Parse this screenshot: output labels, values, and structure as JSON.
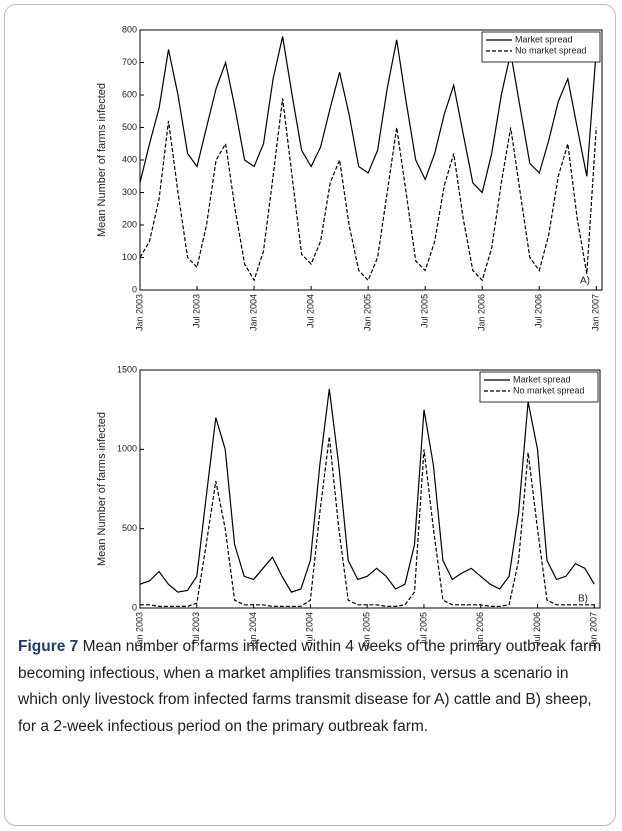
{
  "chart_data": [
    {
      "type": "line",
      "panel_label": "A)",
      "ylabel": "Mean Number of farms infected",
      "x": [
        2003,
        2003.083,
        2003.167,
        2003.25,
        2003.333,
        2003.417,
        2003.5,
        2003.583,
        2003.667,
        2003.75,
        2003.833,
        2003.917,
        2004,
        2004.083,
        2004.167,
        2004.25,
        2004.333,
        2004.417,
        2004.5,
        2004.583,
        2004.667,
        2004.75,
        2004.833,
        2004.917,
        2005,
        2005.083,
        2005.167,
        2005.25,
        2005.333,
        2005.417,
        2005.5,
        2005.583,
        2005.667,
        2005.75,
        2005.833,
        2005.917,
        2006,
        2006.083,
        2006.167,
        2006.25,
        2006.333,
        2006.417,
        2006.5,
        2006.583,
        2006.667,
        2006.75,
        2006.833,
        2006.917,
        2007
      ],
      "series": [
        {
          "name": "Market spread",
          "color": "#000000",
          "line_style": "solid",
          "values": [
            330,
            450,
            560,
            740,
            600,
            420,
            380,
            500,
            620,
            700,
            560,
            400,
            380,
            450,
            650,
            780,
            600,
            430,
            380,
            440,
            560,
            670,
            540,
            380,
            360,
            430,
            620,
            770,
            580,
            400,
            340,
            420,
            540,
            630,
            480,
            330,
            300,
            420,
            600,
            730,
            560,
            390,
            360,
            460,
            580,
            650,
            500,
            350,
            740
          ]
        },
        {
          "name": "No market spread",
          "color": "#000000",
          "line_style": "dashed",
          "values": [
            100,
            150,
            280,
            520,
            300,
            100,
            70,
            200,
            400,
            450,
            250,
            80,
            30,
            120,
            350,
            590,
            350,
            110,
            80,
            150,
            330,
            400,
            200,
            60,
            30,
            100,
            300,
            500,
            300,
            90,
            60,
            150,
            320,
            420,
            220,
            60,
            30,
            130,
            330,
            500,
            300,
            100,
            60,
            170,
            350,
            450,
            220,
            50,
            500
          ]
        }
      ],
      "xlim": [
        2003,
        2007.05
      ],
      "xticks": [
        {
          "value": 2003,
          "label": "Jan 2003"
        },
        {
          "value": 2003.5,
          "label": "Jul 2003"
        },
        {
          "value": 2004,
          "label": "Jan 2004"
        },
        {
          "value": 2004.5,
          "label": "Jul 2004"
        },
        {
          "value": 2005,
          "label": "Jan 2005"
        },
        {
          "value": 2005.5,
          "label": "Jul 2005"
        },
        {
          "value": 2006,
          "label": "Jan 2006"
        },
        {
          "value": 2006.5,
          "label": "Jul 2006"
        },
        {
          "value": 2007,
          "label": "Jan 2007"
        }
      ],
      "ylim": [
        0,
        800
      ],
      "yticks": [
        0,
        100,
        200,
        300,
        400,
        500,
        600,
        700,
        800
      ],
      "legend": "upper right"
    },
    {
      "type": "line",
      "panel_label": "B)",
      "ylabel": "Mean Number of farms infected",
      "x": [
        2003,
        2003.083,
        2003.167,
        2003.25,
        2003.333,
        2003.417,
        2003.5,
        2003.583,
        2003.667,
        2003.75,
        2003.833,
        2003.917,
        2004,
        2004.083,
        2004.167,
        2004.25,
        2004.333,
        2004.417,
        2004.5,
        2004.583,
        2004.667,
        2004.75,
        2004.833,
        2004.917,
        2005,
        2005.083,
        2005.167,
        2005.25,
        2005.333,
        2005.417,
        2005.5,
        2005.583,
        2005.667,
        2005.75,
        2005.833,
        2005.917,
        2006,
        2006.083,
        2006.167,
        2006.25,
        2006.333,
        2006.417,
        2006.5,
        2006.583,
        2006.667,
        2006.75,
        2006.833,
        2006.917,
        2007
      ],
      "series": [
        {
          "name": "Market spread",
          "color": "#000000",
          "line_style": "solid",
          "values": [
            150,
            170,
            230,
            150,
            100,
            110,
            200,
            700,
            1200,
            1000,
            400,
            200,
            180,
            250,
            320,
            200,
            100,
            120,
            300,
            900,
            1380,
            900,
            300,
            180,
            200,
            250,
            200,
            120,
            150,
            400,
            1250,
            900,
            300,
            180,
            220,
            250,
            200,
            150,
            120,
            200,
            600,
            1300,
            1000,
            300,
            180,
            200,
            280,
            250,
            150
          ]
        },
        {
          "name": "No market spread",
          "color": "#000000",
          "line_style": "dashed",
          "values": [
            20,
            20,
            10,
            10,
            10,
            10,
            30,
            400,
            800,
            500,
            50,
            20,
            20,
            20,
            10,
            10,
            10,
            10,
            50,
            600,
            1080,
            500,
            50,
            20,
            20,
            20,
            10,
            10,
            20,
            100,
            1000,
            500,
            50,
            20,
            20,
            20,
            20,
            10,
            10,
            20,
            300,
            980,
            500,
            50,
            20,
            20,
            20,
            20,
            20
          ]
        }
      ],
      "xlim": [
        2003,
        2007.05
      ],
      "xticks": [
        {
          "value": 2003,
          "label": "Jan 2003"
        },
        {
          "value": 2003.5,
          "label": "Jul 2003"
        },
        {
          "value": 2004,
          "label": "Jan 2004"
        },
        {
          "value": 2004.5,
          "label": "Jul 2004"
        },
        {
          "value": 2005,
          "label": "Jan 2005"
        },
        {
          "value": 2005.5,
          "label": "Jul 2005"
        },
        {
          "value": 2006,
          "label": "Jan 2006"
        },
        {
          "value": 2006.5,
          "label": "Jul 2006"
        },
        {
          "value": 2007,
          "label": "Jan 2007"
        }
      ],
      "ylim": [
        0,
        1500
      ],
      "yticks": [
        0,
        500,
        1000,
        1500
      ],
      "legend": "upper right"
    }
  ],
  "caption": {
    "label": "Figure 7",
    "text": "Mean number of farms infected within 4 weeks of the primary outbreak farm becoming infectious, when a market amplifies transmission, versus a scenario in which only livestock from infected farms transmit disease for A) cattle and B) sheep, for a 2-week infectious period on the primary outbreak farm."
  }
}
